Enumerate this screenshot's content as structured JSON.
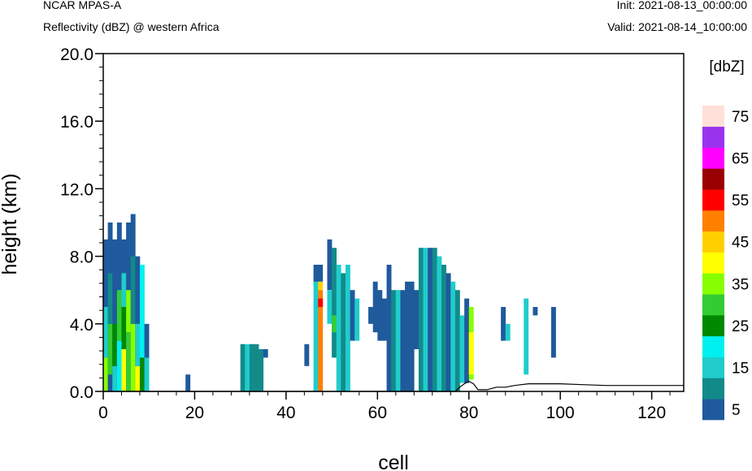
{
  "header": {
    "title": "NCAR MPAS-A",
    "subtitle": "Reflectivity (dBZ) @ western Africa",
    "init": "Init: 2021-08-13_00:00:00",
    "valid": "Valid: 2021-08-14_10:00:00"
  },
  "chart_data": {
    "type": "heatmap",
    "xlabel": "cell",
    "ylabel": "height (km)",
    "xlim": [
      0,
      127
    ],
    "ylim": [
      0,
      20
    ],
    "x_ticks": [
      "0",
      "20",
      "40",
      "60",
      "80",
      "100",
      "120"
    ],
    "y_ticks": [
      "0.0",
      "4.0",
      "8.0",
      "12.0",
      "16.0",
      "20.0"
    ],
    "grid": false,
    "colorbar": {
      "title": "[dbZ]",
      "labels": [
        "5",
        "15",
        "25",
        "35",
        "45",
        "55",
        "65",
        "75"
      ],
      "colors": [
        "#1f5a9c",
        "#138a8a",
        "#20cccc",
        "#00f0f0",
        "#008800",
        "#33cc33",
        "#88ff00",
        "#ffff00",
        "#ffd000",
        "#ff8000",
        "#ff0000",
        "#990000",
        "#ff00ff",
        "#9933ee",
        "#ffe0d8"
      ]
    },
    "terrain": [
      [
        0,
        0
      ],
      [
        77,
        0
      ],
      [
        78,
        0.25
      ],
      [
        79,
        0.45
      ],
      [
        80,
        0.6
      ],
      [
        81,
        0.45
      ],
      [
        82,
        0.1
      ],
      [
        84,
        0.1
      ],
      [
        86,
        0.25
      ],
      [
        88,
        0.25
      ],
      [
        90,
        0.35
      ],
      [
        93,
        0.45
      ],
      [
        96,
        0.45
      ],
      [
        100,
        0.45
      ],
      [
        105,
        0.4
      ],
      [
        110,
        0.35
      ],
      [
        115,
        0.35
      ],
      [
        120,
        0.35
      ],
      [
        127,
        0.35
      ]
    ],
    "cells": [
      {
        "x": 0,
        "y0": 0,
        "y1": 9.0,
        "c": 0
      },
      {
        "x": 0,
        "y0": 0,
        "y1": 2.0,
        "c": 6
      },
      {
        "x": 0,
        "y0": 2,
        "y1": 5.0,
        "c": 2
      },
      {
        "x": 1,
        "y0": 0,
        "y1": 10.0,
        "c": 0
      },
      {
        "x": 1,
        "y0": 1,
        "y1": 4.0,
        "c": 5
      },
      {
        "x": 1,
        "y0": 4,
        "y1": 7.0,
        "c": 1
      },
      {
        "x": 2,
        "y0": 0,
        "y1": 9.0,
        "c": 0
      },
      {
        "x": 2,
        "y0": 0,
        "y1": 1.5,
        "c": 2
      },
      {
        "x": 2,
        "y0": 1.5,
        "y1": 4.0,
        "c": 4
      },
      {
        "x": 3,
        "y0": 0,
        "y1": 10.0,
        "c": 0
      },
      {
        "x": 3,
        "y0": 0,
        "y1": 3.0,
        "c": 3
      },
      {
        "x": 3,
        "y0": 3,
        "y1": 6.0,
        "c": 5
      },
      {
        "x": 4,
        "y0": 0,
        "y1": 9.0,
        "c": 0
      },
      {
        "x": 4,
        "y0": 0,
        "y1": 2.5,
        "c": 7
      },
      {
        "x": 4,
        "y0": 2.5,
        "y1": 5.0,
        "c": 4
      },
      {
        "x": 4,
        "y0": 5,
        "y1": 7.0,
        "c": 2
      },
      {
        "x": 5,
        "y0": 0,
        "y1": 10.0,
        "c": 0
      },
      {
        "x": 5,
        "y0": 0,
        "y1": 3.5,
        "c": 5
      },
      {
        "x": 5,
        "y0": 3.5,
        "y1": 6.0,
        "c": 6
      },
      {
        "x": 6,
        "y0": 0,
        "y1": 10.5,
        "c": 0
      },
      {
        "x": 6,
        "y0": 0,
        "y1": 4.0,
        "c": 6
      },
      {
        "x": 6,
        "y0": 4,
        "y1": 8.0,
        "c": 1
      },
      {
        "x": 7,
        "y0": 0,
        "y1": 8.0,
        "c": 0
      },
      {
        "x": 7,
        "y0": 0,
        "y1": 1.5,
        "c": 7
      },
      {
        "x": 7,
        "y0": 1.5,
        "y1": 4.0,
        "c": 2
      },
      {
        "x": 8,
        "y0": 0,
        "y1": 7.5,
        "c": 3
      },
      {
        "x": 8,
        "y0": 0,
        "y1": 2.0,
        "c": 4
      },
      {
        "x": 9,
        "y0": 0,
        "y1": 4.0,
        "c": 0
      },
      {
        "x": 9,
        "y0": 0,
        "y1": 2.0,
        "c": 2
      },
      {
        "x": 18,
        "y0": 0,
        "y1": 1.0,
        "c": 0
      },
      {
        "x": 30,
        "y0": 0,
        "y1": 2.8,
        "c": 1
      },
      {
        "x": 31,
        "y0": 0,
        "y1": 2.8,
        "c": 2
      },
      {
        "x": 32,
        "y0": 0,
        "y1": 2.8,
        "c": 1
      },
      {
        "x": 33,
        "y0": 0,
        "y1": 2.8,
        "c": 1
      },
      {
        "x": 34,
        "y0": 0,
        "y1": 2.5,
        "c": 1
      },
      {
        "x": 35,
        "y0": 2,
        "y1": 2.5,
        "c": 0
      },
      {
        "x": 44,
        "y0": 1.5,
        "y1": 2.8,
        "c": 0
      },
      {
        "x": 46,
        "y0": 0,
        "y1": 7.0,
        "c": 2
      },
      {
        "x": 46,
        "y0": 6.5,
        "y1": 7.5,
        "c": 0
      },
      {
        "x": 47,
        "y0": 0,
        "y1": 6.0,
        "c": 9
      },
      {
        "x": 47,
        "y0": 6.0,
        "y1": 6.5,
        "c": 8
      },
      {
        "x": 47,
        "y0": 5.0,
        "y1": 5.5,
        "c": 10
      },
      {
        "x": 47,
        "y0": 6.5,
        "y1": 7.5,
        "c": 0
      },
      {
        "x": 49,
        "y0": 6.0,
        "y1": 9.0,
        "c": 0
      },
      {
        "x": 49,
        "y0": 4.0,
        "y1": 6.0,
        "c": 2
      },
      {
        "x": 50,
        "y0": 2.0,
        "y1": 8.5,
        "c": 1
      },
      {
        "x": 50,
        "y0": 3.5,
        "y1": 4.5,
        "c": 5
      },
      {
        "x": 51,
        "y0": 0,
        "y1": 7.5,
        "c": 2
      },
      {
        "x": 52,
        "y0": 0,
        "y1": 7.0,
        "c": 1
      },
      {
        "x": 53,
        "y0": 0,
        "y1": 7.5,
        "c": 2
      },
      {
        "x": 54,
        "y0": 3.0,
        "y1": 6.0,
        "c": 0
      },
      {
        "x": 55,
        "y0": 3.0,
        "y1": 5.5,
        "c": 2
      },
      {
        "x": 58,
        "y0": 4.0,
        "y1": 5.0,
        "c": 0
      },
      {
        "x": 59,
        "y0": 3.5,
        "y1": 6.5,
        "c": 0
      },
      {
        "x": 60,
        "y0": 3.0,
        "y1": 6.0,
        "c": 0
      },
      {
        "x": 61,
        "y0": 3.0,
        "y1": 5.5,
        "c": 0
      },
      {
        "x": 62,
        "y0": 0,
        "y1": 7.5,
        "c": 0
      },
      {
        "x": 63,
        "y0": 0,
        "y1": 6.0,
        "c": 1
      },
      {
        "x": 64,
        "y0": 0,
        "y1": 6.0,
        "c": 2
      },
      {
        "x": 65,
        "y0": 0,
        "y1": 6.0,
        "c": 0
      },
      {
        "x": 66,
        "y0": 0,
        "y1": 6.5,
        "c": 0
      },
      {
        "x": 67,
        "y0": 0,
        "y1": 6.5,
        "c": 0
      },
      {
        "x": 68,
        "y0": 2.5,
        "y1": 6.0,
        "c": 0
      },
      {
        "x": 69,
        "y0": 0,
        "y1": 8.5,
        "c": 1
      },
      {
        "x": 70,
        "y0": 0,
        "y1": 8.5,
        "c": 2
      },
      {
        "x": 71,
        "y0": 0,
        "y1": 8.5,
        "c": 0
      },
      {
        "x": 72,
        "y0": 0,
        "y1": 8.5,
        "c": 1
      },
      {
        "x": 73,
        "y0": 0,
        "y1": 8.0,
        "c": 2
      },
      {
        "x": 74,
        "y0": 0,
        "y1": 7.5,
        "c": 1
      },
      {
        "x": 75,
        "y0": 0,
        "y1": 7.0,
        "c": 0
      },
      {
        "x": 76,
        "y0": 0,
        "y1": 6.5,
        "c": 2
      },
      {
        "x": 77,
        "y0": 0,
        "y1": 6.0,
        "c": 1
      },
      {
        "x": 78,
        "y0": 0.5,
        "y1": 4.5,
        "c": 2
      },
      {
        "x": 79,
        "y0": 0.5,
        "y1": 5.5,
        "c": 0
      },
      {
        "x": 80,
        "y0": 0.7,
        "y1": 5.0,
        "c": 6
      },
      {
        "x": 80,
        "y0": 1.0,
        "y1": 3.5,
        "c": 7
      },
      {
        "x": 87,
        "y0": 3.0,
        "y1": 5.0,
        "c": 0
      },
      {
        "x": 88,
        "y0": 3.0,
        "y1": 4.0,
        "c": 2
      },
      {
        "x": 92,
        "y0": 1.0,
        "y1": 5.5,
        "c": 2
      },
      {
        "x": 94,
        "y0": 4.5,
        "y1": 5.0,
        "c": 0
      },
      {
        "x": 98,
        "y0": 2.0,
        "y1": 5.0,
        "c": 0
      }
    ]
  }
}
